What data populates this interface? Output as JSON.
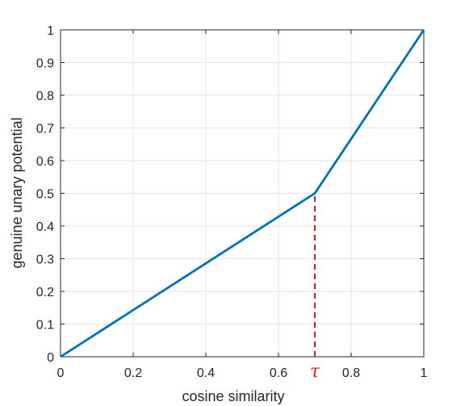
{
  "chart_data": {
    "type": "line",
    "title": "",
    "xlabel": "cosine similarity",
    "ylabel": "genuine unary potential",
    "xlim": [
      0,
      1
    ],
    "ylim": [
      0,
      1
    ],
    "grid": true,
    "x_ticks": [
      {
        "value": 0,
        "label": "0"
      },
      {
        "value": 0.2,
        "label": "0.2"
      },
      {
        "value": 0.4,
        "label": "0.4"
      },
      {
        "value": 0.6,
        "label": "0.6"
      },
      {
        "value": 0.8,
        "label": "0.8"
      },
      {
        "value": 1,
        "label": "1"
      }
    ],
    "y_ticks": [
      {
        "value": 0,
        "label": "0"
      },
      {
        "value": 0.1,
        "label": "0.1"
      },
      {
        "value": 0.2,
        "label": "0.2"
      },
      {
        "value": 0.3,
        "label": "0.3"
      },
      {
        "value": 0.4,
        "label": "0.4"
      },
      {
        "value": 0.5,
        "label": "0.5"
      },
      {
        "value": 0.6,
        "label": "0.6"
      },
      {
        "value": 0.7,
        "label": "0.7"
      },
      {
        "value": 0.8,
        "label": "0.8"
      },
      {
        "value": 0.9,
        "label": "0.9"
      },
      {
        "value": 1,
        "label": "1"
      }
    ],
    "series": [
      {
        "color": "#0072bd",
        "x": [
          0,
          0.7,
          1
        ],
        "y": [
          0,
          0.5,
          1
        ]
      }
    ],
    "annotations": [
      {
        "type": "vertical-dashed-line",
        "x": 0.7,
        "y_from": 0,
        "y_to": 0.5,
        "color": "#e41a1c",
        "label": "τ"
      }
    ]
  }
}
